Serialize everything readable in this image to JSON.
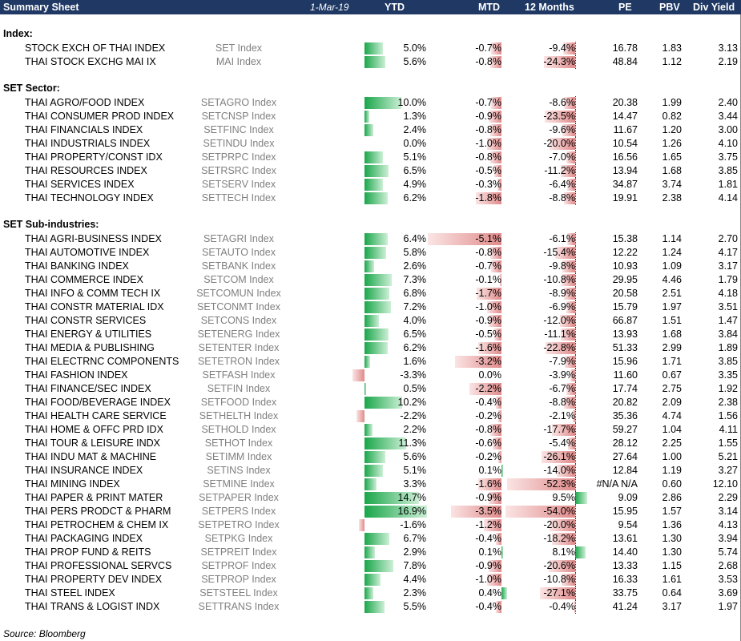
{
  "header": {
    "title": "Summary Sheet",
    "date": "1-Mar-19",
    "columns": [
      "YTD",
      "MTD",
      "12 Months",
      "PE",
      "PBV",
      "Div Yield"
    ]
  },
  "sections": [
    {
      "title": "Index:",
      "rows": [
        {
          "name": "STOCK EXCH OF THAI INDEX",
          "ticker": "SET Index",
          "ytd": "5.0%",
          "mtd": "-0.7%",
          "m12": "-9.4%",
          "pe": "16.78",
          "pbv": "1.83",
          "dy": "3.13"
        },
        {
          "name": "THAI STOCK EXCHG MAI IX",
          "ticker": "MAI Index",
          "ytd": "5.6%",
          "mtd": "-0.8%",
          "m12": "-24.3%",
          "pe": "48.84",
          "pbv": "1.12",
          "dy": "2.19"
        }
      ]
    },
    {
      "title": "SET Sector:",
      "rows": [
        {
          "name": "THAI AGRO/FOOD INDEX",
          "ticker": "SETAGRO Index",
          "ytd": "10.0%",
          "mtd": "-0.7%",
          "m12": "-8.6%",
          "pe": "20.38",
          "pbv": "1.99",
          "dy": "2.40"
        },
        {
          "name": "THAI CONSUMER PROD INDEX",
          "ticker": "SETCNSP Index",
          "ytd": "1.3%",
          "mtd": "-0.9%",
          "m12": "-23.5%",
          "pe": "14.47",
          "pbv": "0.82",
          "dy": "3.44"
        },
        {
          "name": "THAI FINANCIALS INDEX",
          "ticker": "SETFINC Index",
          "ytd": "2.4%",
          "mtd": "-0.8%",
          "m12": "-9.6%",
          "pe": "11.67",
          "pbv": "1.20",
          "dy": "3.00"
        },
        {
          "name": "THAI INDUSTRIALS INDEX",
          "ticker": "SETINDU Index",
          "ytd": "0.0%",
          "mtd": "-1.0%",
          "m12": "-20.0%",
          "pe": "10.54",
          "pbv": "1.26",
          "dy": "4.10"
        },
        {
          "name": "THAI PROPERTY/CONST IDX",
          "ticker": "SETPRPC Index",
          "ytd": "5.1%",
          "mtd": "-0.8%",
          "m12": "-7.0%",
          "pe": "16.56",
          "pbv": "1.65",
          "dy": "3.75"
        },
        {
          "name": "THAI RESOURCES INDEX",
          "ticker": "SETRSRC Index",
          "ytd": "6.5%",
          "mtd": "-0.5%",
          "m12": "-11.2%",
          "pe": "13.94",
          "pbv": "1.68",
          "dy": "3.85"
        },
        {
          "name": "THAI SERVICES INDEX",
          "ticker": "SETSERV Index",
          "ytd": "4.9%",
          "mtd": "-0.3%",
          "m12": "-6.4%",
          "pe": "34.87",
          "pbv": "3.74",
          "dy": "1.81"
        },
        {
          "name": "THAI TECHNOLOGY INDEX",
          "ticker": "SETTECH Index",
          "ytd": "6.2%",
          "mtd": "-1.8%",
          "m12": "-8.8%",
          "pe": "19.91",
          "pbv": "2.38",
          "dy": "4.14"
        }
      ]
    },
    {
      "title": "SET Sub-industries:",
      "rows": [
        {
          "name": "THAI AGRI-BUSINESS INDEX",
          "ticker": "SETAGRI Index",
          "ytd": "6.4%",
          "mtd": "-5.1%",
          "m12": "-6.1%",
          "pe": "15.38",
          "pbv": "1.14",
          "dy": "2.70"
        },
        {
          "name": "THAI AUTOMOTIVE INDEX",
          "ticker": "SETAUTO Index",
          "ytd": "5.8%",
          "mtd": "-0.8%",
          "m12": "-15.4%",
          "pe": "12.22",
          "pbv": "1.24",
          "dy": "4.17"
        },
        {
          "name": "THAI BANKING INDEX",
          "ticker": "SETBANK Index",
          "ytd": "2.6%",
          "mtd": "-0.7%",
          "m12": "-9.8%",
          "pe": "10.93",
          "pbv": "1.09",
          "dy": "3.17"
        },
        {
          "name": "THAI COMMERCE INDEX",
          "ticker": "SETCOM Index",
          "ytd": "7.3%",
          "mtd": "-0.1%",
          "m12": "-10.8%",
          "pe": "29.95",
          "pbv": "4.46",
          "dy": "1.79"
        },
        {
          "name": "THAI INFO & COMM TECH IX",
          "ticker": "SETCOMUN Index",
          "ytd": "6.8%",
          "mtd": "-1.7%",
          "m12": "-8.9%",
          "pe": "20.58",
          "pbv": "2.51",
          "dy": "4.18"
        },
        {
          "name": "THAI CONSTR MATERIAL IDX",
          "ticker": "SETCONMT Index",
          "ytd": "7.2%",
          "mtd": "-1.0%",
          "m12": "-6.9%",
          "pe": "15.79",
          "pbv": "1.97",
          "dy": "3.51"
        },
        {
          "name": "THAI CONSTR SERVICES",
          "ticker": "SETCONS Index",
          "ytd": "4.0%",
          "mtd": "-0.9%",
          "m12": "-12.0%",
          "pe": "66.87",
          "pbv": "1.51",
          "dy": "1.47"
        },
        {
          "name": "THAI ENERGY & UTILITIES",
          "ticker": "SETENERG Index",
          "ytd": "6.5%",
          "mtd": "-0.5%",
          "m12": "-11.1%",
          "pe": "13.93",
          "pbv": "1.68",
          "dy": "3.84"
        },
        {
          "name": "THAI MEDIA & PUBLISHING",
          "ticker": "SETENTER Index",
          "ytd": "6.2%",
          "mtd": "-1.6%",
          "m12": "-22.8%",
          "pe": "51.33",
          "pbv": "2.99",
          "dy": "1.89"
        },
        {
          "name": "THAI ELECTRNC COMPONENTS",
          "ticker": "SETETRON Index",
          "ytd": "1.6%",
          "mtd": "-3.2%",
          "m12": "-7.9%",
          "pe": "15.96",
          "pbv": "1.71",
          "dy": "3.85"
        },
        {
          "name": "THAI FASHION INDEX",
          "ticker": "SETFASH Index",
          "ytd": "-3.3%",
          "mtd": "0.0%",
          "m12": "-3.9%",
          "pe": "11.60",
          "pbv": "0.67",
          "dy": "3.35"
        },
        {
          "name": "THAI FINANCE/SEC INDEX",
          "ticker": "SETFIN Index",
          "ytd": "0.5%",
          "mtd": "-2.2%",
          "m12": "-6.7%",
          "pe": "17.74",
          "pbv": "2.75",
          "dy": "1.92"
        },
        {
          "name": "THAI FOOD/BEVERAGE INDEX",
          "ticker": "SETFOOD Index",
          "ytd": "10.2%",
          "mtd": "-0.4%",
          "m12": "-8.8%",
          "pe": "20.82",
          "pbv": "2.09",
          "dy": "2.38"
        },
        {
          "name": "THAI HEALTH CARE SERVICE",
          "ticker": "SETHELTH Index",
          "ytd": "-2.2%",
          "mtd": "-0.2%",
          "m12": "-2.1%",
          "pe": "35.36",
          "pbv": "4.74",
          "dy": "1.56"
        },
        {
          "name": "THAI HOME & OFFC PRD IDX",
          "ticker": "SETHOLD Index",
          "ytd": "2.2%",
          "mtd": "-0.8%",
          "m12": "-17.7%",
          "pe": "59.27",
          "pbv": "1.04",
          "dy": "4.11"
        },
        {
          "name": "THAI TOUR & LEISURE INDX",
          "ticker": "SETHOT Index",
          "ytd": "11.3%",
          "mtd": "-0.6%",
          "m12": "-5.4%",
          "pe": "28.12",
          "pbv": "2.25",
          "dy": "1.55"
        },
        {
          "name": "THAI INDU MAT & MACHINE",
          "ticker": "SETIMM Index",
          "ytd": "5.6%",
          "mtd": "-0.2%",
          "m12": "-26.1%",
          "pe": "27.64",
          "pbv": "1.00",
          "dy": "5.21"
        },
        {
          "name": "THAI INSURANCE INDEX",
          "ticker": "SETINS Index",
          "ytd": "5.1%",
          "mtd": "0.1%",
          "m12": "-14.0%",
          "pe": "12.84",
          "pbv": "1.19",
          "dy": "3.27"
        },
        {
          "name": "THAI MINING INDEX",
          "ticker": "SETMINE Index",
          "ytd": "3.3%",
          "mtd": "-1.6%",
          "m12": "-52.3%",
          "pe": "#N/A N/A",
          "pbv": "0.60",
          "dy": "12.10"
        },
        {
          "name": "THAI PAPER & PRINT MATER",
          "ticker": "SETPAPER Index",
          "ytd": "14.7%",
          "mtd": "-0.9%",
          "m12": "9.5%",
          "pe": "9.09",
          "pbv": "2.86",
          "dy": "2.29"
        },
        {
          "name": "THAI PERS PRODCT & PHARM",
          "ticker": "SETPERS Index",
          "ytd": "16.9%",
          "mtd": "-3.5%",
          "m12": "-54.0%",
          "pe": "15.95",
          "pbv": "1.57",
          "dy": "3.14"
        },
        {
          "name": "THAI PETROCHEM & CHEM IX",
          "ticker": "SETPETRO Index",
          "ytd": "-1.6%",
          "mtd": "-1.2%",
          "m12": "-20.0%",
          "pe": "9.54",
          "pbv": "1.36",
          "dy": "4.13"
        },
        {
          "name": "THAI PACKAGING INDEX",
          "ticker": "SETPKG Index",
          "ytd": "6.7%",
          "mtd": "-0.4%",
          "m12": "-18.2%",
          "pe": "13.61",
          "pbv": "1.30",
          "dy": "3.94"
        },
        {
          "name": "THAI PROP FUND & REITS",
          "ticker": "SETPREIT Index",
          "ytd": "2.9%",
          "mtd": "0.1%",
          "m12": "8.1%",
          "pe": "14.40",
          "pbv": "1.30",
          "dy": "5.74"
        },
        {
          "name": "THAI PROFESSIONAL SERVCS",
          "ticker": "SETPROF Index",
          "ytd": "7.8%",
          "mtd": "-0.9%",
          "m12": "-20.6%",
          "pe": "13.33",
          "pbv": "1.15",
          "dy": "2.68"
        },
        {
          "name": "THAI PROPERTY DEV INDEX",
          "ticker": "SETPROP Index",
          "ytd": "4.4%",
          "mtd": "-1.0%",
          "m12": "-10.8%",
          "pe": "16.33",
          "pbv": "1.61",
          "dy": "3.53"
        },
        {
          "name": "THAI STEEL INDEX",
          "ticker": "SETSTEEL Index",
          "ytd": "2.3%",
          "mtd": "0.4%",
          "m12": "-27.1%",
          "pe": "33.75",
          "pbv": "0.64",
          "dy": "3.69"
        },
        {
          "name": "THAI TRANS & LOGIST INDX",
          "ticker": "SETTRANS Index",
          "ytd": "5.5%",
          "mtd": "-0.4%",
          "m12": "-0.4%",
          "pe": "41.24",
          "pbv": "3.17",
          "dy": "1.97"
        }
      ]
    }
  ],
  "footer": {
    "source": "Source: Bloomberg"
  },
  "colors": {
    "header_bg": "#1f3864",
    "positive_bar": "#1aa64a",
    "negative_bar": "#e08a8a"
  }
}
